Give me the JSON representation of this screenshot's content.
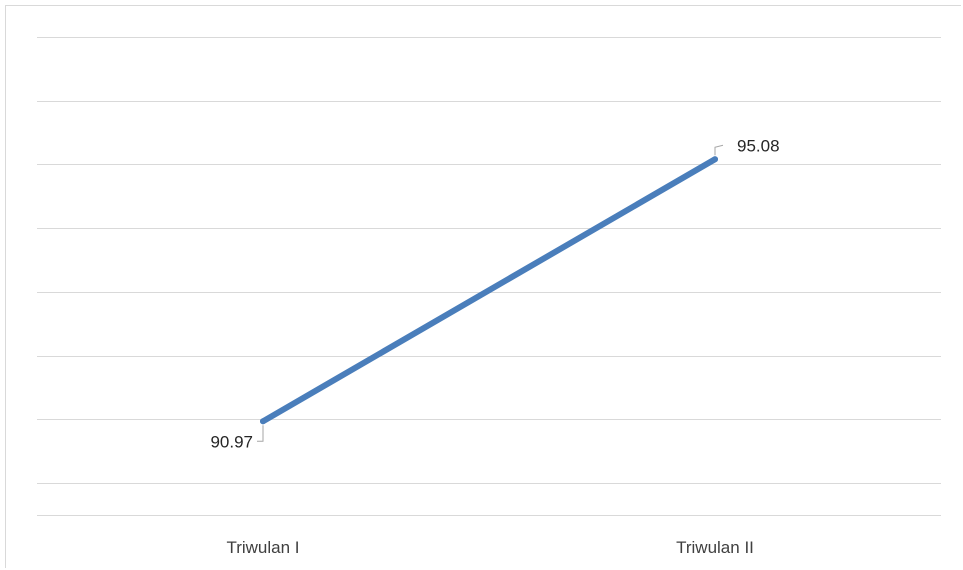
{
  "chart_data": {
    "type": "line",
    "title": "",
    "xlabel": "",
    "ylabel": "",
    "categories": [
      "Triwulan I",
      "Triwulan II"
    ],
    "series": [
      {
        "values": [
          90.97,
          95.08
        ],
        "color": "#4a7ebb",
        "data_labels": [
          "90.97",
          "95.08"
        ]
      }
    ],
    "ylim": [
      89.5,
      97.5
    ],
    "y_gridline_step": 1,
    "grid": true,
    "legend": "none",
    "y_tick_labels_shown": false
  }
}
